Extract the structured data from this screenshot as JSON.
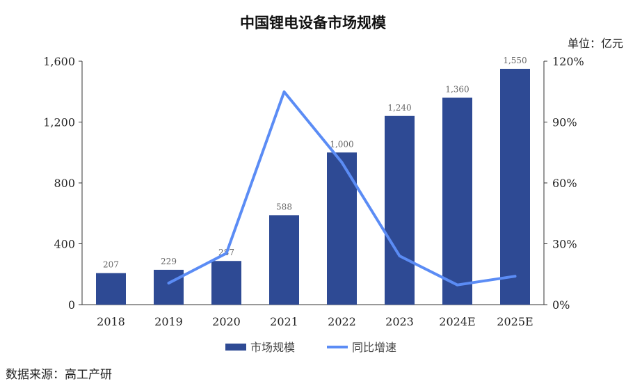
{
  "chart_data": {
    "type": "bar",
    "title": "中国锂电设备市场规模",
    "unit_label": "单位：亿元",
    "categories": [
      "2018",
      "2019",
      "2020",
      "2021",
      "2022",
      "2023",
      "2024E",
      "2025E"
    ],
    "series": [
      {
        "name": "市场规模",
        "type": "bar",
        "axis": "left",
        "color": "#2E4A94",
        "values": [
          207,
          229,
          287,
          588,
          1000,
          1240,
          1360,
          1550
        ],
        "data_labels": [
          "207",
          "229",
          "287",
          "588",
          "1,000",
          "1,240",
          "1,360",
          "1,550"
        ]
      },
      {
        "name": "同比增速",
        "type": "line",
        "axis": "right",
        "color": "#5B8CF5",
        "values": [
          null,
          10.6,
          25.3,
          104.9,
          70.1,
          24.0,
          9.7,
          14.0
        ]
      }
    ],
    "y_left": {
      "min": 0,
      "max": 1600,
      "ticks": [
        0,
        400,
        800,
        1200,
        1600
      ],
      "tick_labels": [
        "0",
        "400",
        "800",
        "1,200",
        "1,600"
      ]
    },
    "y_right": {
      "min": 0,
      "max": 120,
      "ticks": [
        0,
        30,
        60,
        90,
        120
      ],
      "tick_labels": [
        "0%",
        "30%",
        "60%",
        "90%",
        "120%"
      ]
    },
    "grid": false,
    "legend_position": "bottom"
  },
  "source": "数据来源：高工产研"
}
